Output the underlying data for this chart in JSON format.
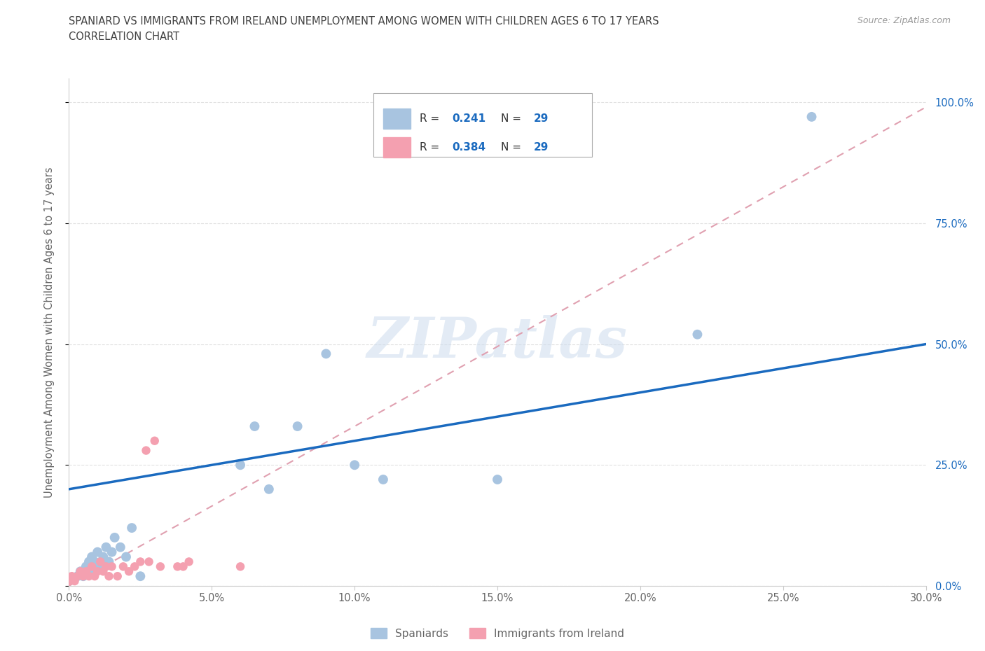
{
  "title_line1": "SPANIARD VS IMMIGRANTS FROM IRELAND UNEMPLOYMENT AMONG WOMEN WITH CHILDREN AGES 6 TO 17 YEARS",
  "title_line2": "CORRELATION CHART",
  "source_text": "Source: ZipAtlas.com",
  "ylabel": "Unemployment Among Women with Children Ages 6 to 17 years",
  "xlim": [
    0.0,
    0.3
  ],
  "ylim": [
    0.0,
    1.05
  ],
  "xtick_labels": [
    "0.0%",
    "5.0%",
    "10.0%",
    "15.0%",
    "20.0%",
    "25.0%",
    "30.0%"
  ],
  "xtick_vals": [
    0.0,
    0.05,
    0.1,
    0.15,
    0.2,
    0.25,
    0.3
  ],
  "ytick_vals": [
    0.0,
    0.25,
    0.5,
    0.75,
    1.0
  ],
  "ytick_right_labels": [
    "0.0%",
    "25.0%",
    "50.0%",
    "75.0%",
    "100.0%"
  ],
  "spaniard_color": "#a8c4e0",
  "ireland_color": "#f4a0b0",
  "trend_spaniard_color": "#1a6abf",
  "trend_ireland_color": "#e0a0b0",
  "watermark": "ZIPatlas",
  "spaniard_x": [
    0.003,
    0.004,
    0.005,
    0.006,
    0.007,
    0.007,
    0.008,
    0.009,
    0.01,
    0.011,
    0.012,
    0.013,
    0.014,
    0.015,
    0.016,
    0.018,
    0.02,
    0.022,
    0.025,
    0.06,
    0.065,
    0.07,
    0.08,
    0.09,
    0.1,
    0.11,
    0.15,
    0.22,
    0.26
  ],
  "spaniard_y": [
    0.02,
    0.03,
    0.02,
    0.04,
    0.03,
    0.05,
    0.06,
    0.05,
    0.07,
    0.04,
    0.06,
    0.08,
    0.05,
    0.07,
    0.1,
    0.08,
    0.06,
    0.12,
    0.02,
    0.25,
    0.33,
    0.2,
    0.33,
    0.48,
    0.25,
    0.22,
    0.22,
    0.52,
    0.97
  ],
  "ireland_x": [
    0.0,
    0.001,
    0.002,
    0.003,
    0.004,
    0.005,
    0.006,
    0.007,
    0.008,
    0.009,
    0.01,
    0.011,
    0.012,
    0.013,
    0.014,
    0.015,
    0.017,
    0.019,
    0.021,
    0.023,
    0.025,
    0.027,
    0.028,
    0.03,
    0.032,
    0.038,
    0.04,
    0.042,
    0.06
  ],
  "ireland_y": [
    0.01,
    0.02,
    0.01,
    0.02,
    0.03,
    0.02,
    0.03,
    0.02,
    0.04,
    0.02,
    0.03,
    0.05,
    0.03,
    0.04,
    0.02,
    0.04,
    0.02,
    0.04,
    0.03,
    0.04,
    0.05,
    0.28,
    0.05,
    0.3,
    0.04,
    0.04,
    0.04,
    0.05,
    0.04
  ],
  "bg_color": "#ffffff",
  "grid_color": "#e0e0e0",
  "axis_color": "#cccccc",
  "title_color": "#404040",
  "legend_text_color": "#1a6abf",
  "right_tick_color": "#1a6abf"
}
